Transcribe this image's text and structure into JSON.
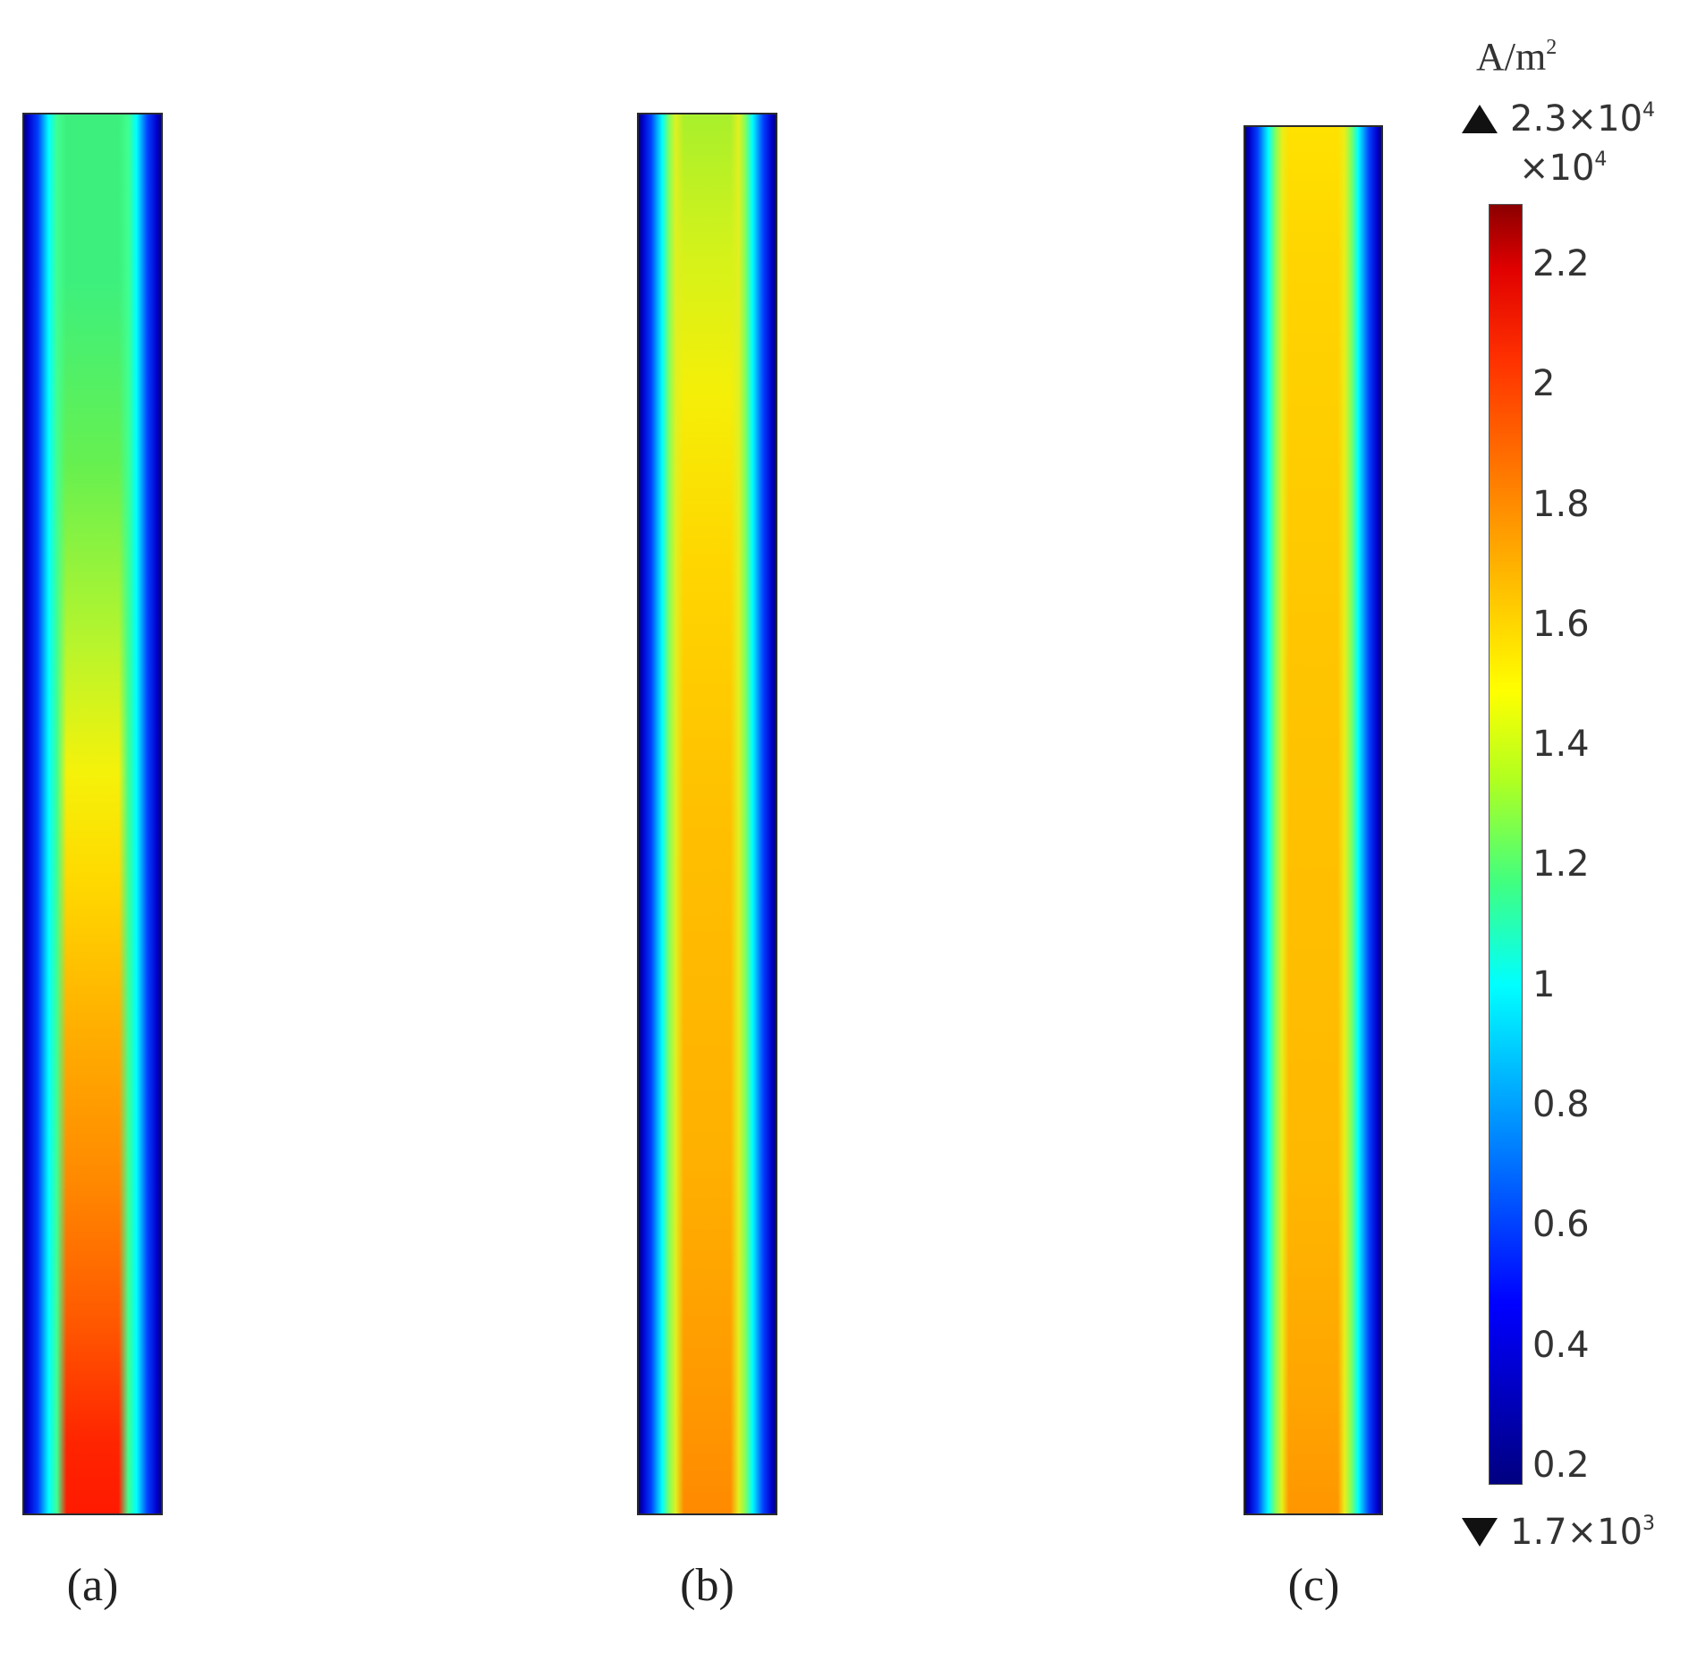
{
  "panels": [
    {
      "label": "(a)",
      "core_top": "#3df07d",
      "core_bottom": "#ff1a00"
    },
    {
      "label": "(b)",
      "core_top": "#a8f02c",
      "core_bottom": "#ff8a00"
    },
    {
      "label": "(c)",
      "core_top": "#ffe200",
      "core_bottom": "#ff9600"
    }
  ],
  "legend": {
    "unit": "A/m",
    "unit_exp": "2",
    "max_mantissa": "2.3×10",
    "max_exp": "4",
    "min_mantissa": "1.7×10",
    "min_exp": "3",
    "multiplier_base": "×10",
    "multiplier_exp": "4",
    "colormap": "rainbow",
    "colormap_low": "#000080",
    "colormap_high": "#8b0000",
    "range": [
      0.17,
      2.3
    ],
    "ticks": [
      {
        "label": "2.2",
        "value": 2.2
      },
      {
        "label": "2",
        "value": 2.0
      },
      {
        "label": "1.8",
        "value": 1.8
      },
      {
        "label": "1.6",
        "value": 1.6
      },
      {
        "label": "1.4",
        "value": 1.4
      },
      {
        "label": "1.2",
        "value": 1.2
      },
      {
        "label": "1",
        "value": 1.0
      },
      {
        "label": "0.8",
        "value": 0.8
      },
      {
        "label": "0.6",
        "value": 0.6
      },
      {
        "label": "0.4",
        "value": 0.4
      },
      {
        "label": "0.2",
        "value": 0.2
      }
    ]
  }
}
